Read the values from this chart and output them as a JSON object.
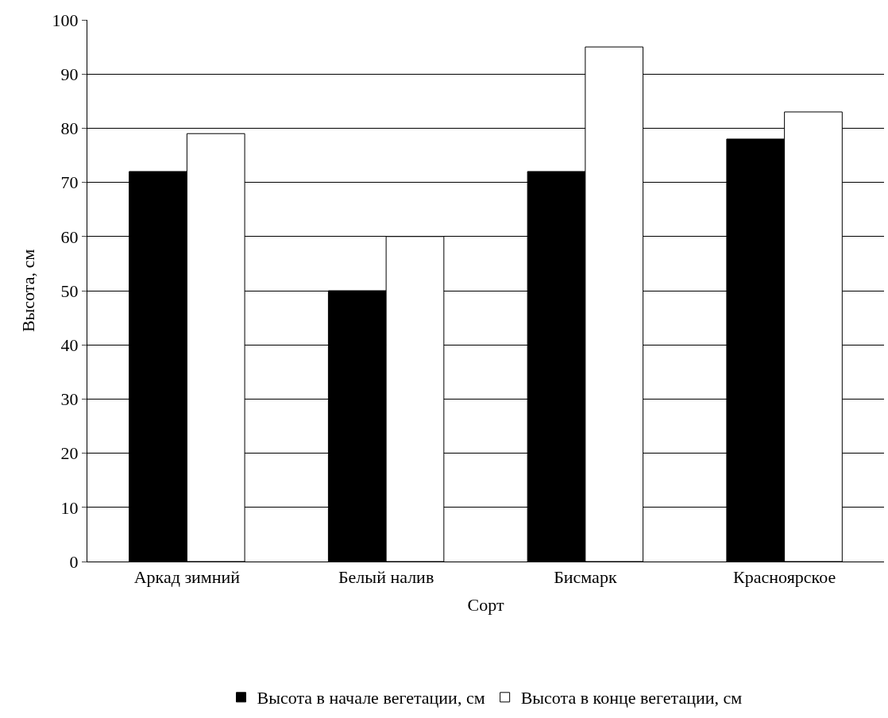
{
  "chart_data": {
    "type": "bar",
    "xlabel": "Сорт",
    "ylabel": "Высота, см",
    "categories": [
      "Аркад зимний",
      "Белый налив",
      "Бисмарк",
      "Красноярское"
    ],
    "series": [
      {
        "name": "Высота в начале вегетации, см",
        "color": "#000000",
        "values": [
          72,
          50,
          72,
          78
        ]
      },
      {
        "name": "Высота в конце вегетации, см",
        "color": "#ffffff",
        "values": [
          79,
          60,
          95,
          83
        ]
      }
    ],
    "ylim": [
      0,
      100
    ],
    "yticks": [
      0,
      10,
      20,
      30,
      40,
      50,
      60,
      70,
      80,
      90,
      100
    ],
    "grid": "y",
    "legend": "bottom"
  }
}
